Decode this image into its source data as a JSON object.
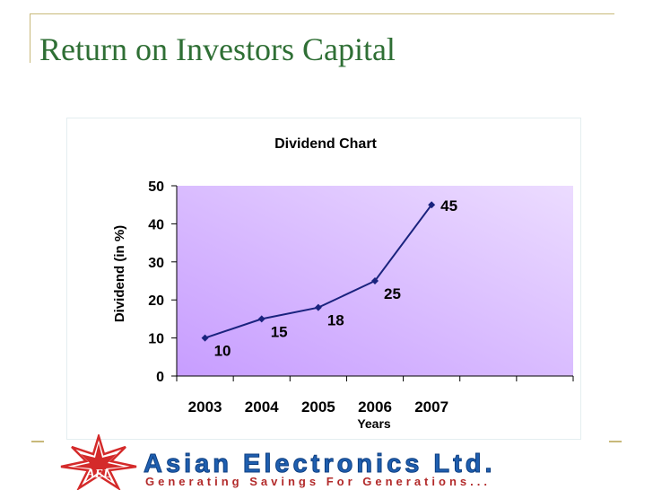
{
  "slide": {
    "title": "Return on Investors Capital"
  },
  "footer": {
    "company": "Asian Electronics Ltd.",
    "tagline": "Generating Savings For Generations...",
    "logo_text": "AEL"
  },
  "colors": {
    "title": "#2f6f35",
    "rule": "#c8b97a",
    "series": "#1a237e",
    "plot_light": "#ecdcff",
    "plot_dark": "#c79dff",
    "company": "#1f5fb0",
    "tagline": "#b22a2a",
    "logo": "#d42a2a"
  },
  "chart_data": {
    "type": "line",
    "title": "Dividend Chart",
    "xlabel": "Years",
    "ylabel": "Dividend (in %)",
    "ylim": [
      0,
      50
    ],
    "yticks": [
      0,
      10,
      20,
      30,
      40,
      50
    ],
    "categories": [
      "2003",
      "2004",
      "2005",
      "2006",
      "2007"
    ],
    "series": [
      {
        "values": [
          10,
          15,
          18,
          25,
          45
        ],
        "data_labels": [
          "10",
          "15",
          "18",
          "25",
          "45"
        ]
      }
    ],
    "grid": false,
    "legend": "none"
  }
}
